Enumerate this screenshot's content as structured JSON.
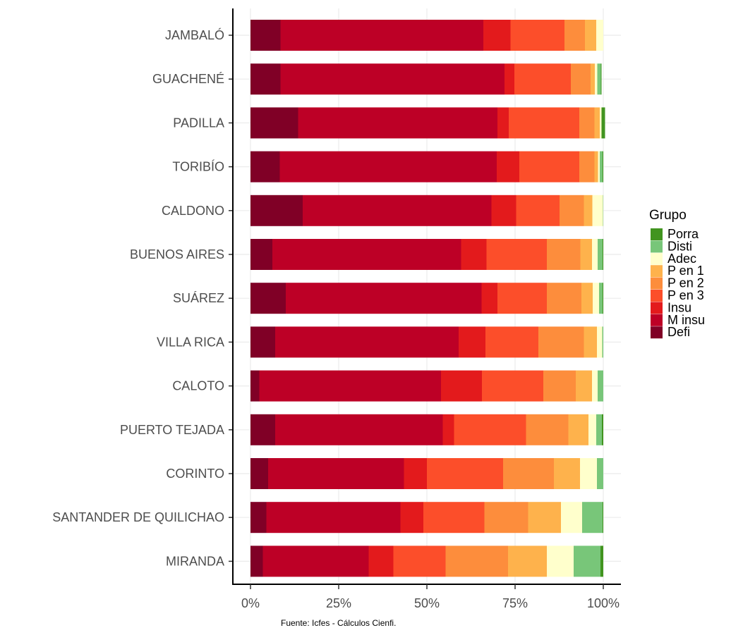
{
  "chart_data": {
    "type": "bar",
    "orientation": "horizontal",
    "stacked": "percent",
    "categories": [
      "JAMBALÓ",
      "GUACHENÉ",
      "PADILLA",
      "TORIBÍO",
      "CALDONO",
      "BUENOS AIRES",
      "SUÁREZ",
      "VILLA RICA",
      "CALOTO",
      "PUERTO TEJADA",
      "CORINTO",
      "SANTANDER DE QUILICHAO",
      "MIRANDA"
    ],
    "series": [
      {
        "name": "Defi",
        "color": "#800026",
        "values": [
          8.5,
          8.5,
          13.5,
          8.3,
          14.8,
          6.2,
          10.0,
          7.0,
          2.5,
          7.0,
          5.0,
          4.5,
          3.5
        ]
      },
      {
        "name": "M insu",
        "color": "#bd0026",
        "values": [
          57.5,
          63.5,
          56.5,
          61.5,
          53.5,
          53.5,
          55.5,
          52.0,
          51.5,
          47.5,
          38.5,
          38.0,
          30.0
        ]
      },
      {
        "name": "Insu",
        "color": "#e31a1c",
        "values": [
          7.7,
          2.8,
          3.2,
          6.4,
          7.0,
          7.2,
          4.5,
          7.6,
          11.6,
          3.2,
          6.5,
          6.5,
          7.0
        ]
      },
      {
        "name": "P en 3",
        "color": "#fc4e2a",
        "values": [
          15.3,
          16.0,
          20.0,
          17.0,
          12.3,
          17.1,
          14.0,
          15.0,
          17.4,
          20.4,
          21.6,
          17.3,
          14.8
        ]
      },
      {
        "name": "P en 2",
        "color": "#fd8d3c",
        "values": [
          5.8,
          5.6,
          4.3,
          4.3,
          6.9,
          9.5,
          9.8,
          12.9,
          9.2,
          12.0,
          14.4,
          12.4,
          17.7
        ]
      },
      {
        "name": "P en 1",
        "color": "#feb24c",
        "values": [
          3.2,
          1.2,
          1.5,
          1.0,
          2.4,
          3.3,
          3.2,
          3.7,
          4.6,
          5.7,
          7.4,
          9.3,
          11.0
        ]
      },
      {
        "name": "Adec",
        "color": "#ffffcc",
        "values": [
          2.0,
          0.7,
          0.5,
          0.5,
          3.0,
          1.6,
          1.8,
          1.5,
          1.6,
          2.2,
          4.8,
          6.0,
          7.6
        ]
      },
      {
        "name": "Disti",
        "color": "#78c679",
        "values": [
          0.0,
          1.0,
          0.0,
          0.8,
          0.1,
          1.4,
          1.0,
          0.3,
          1.6,
          1.6,
          1.8,
          5.8,
          7.6
        ]
      },
      {
        "name": "Porra",
        "color": "#41941f",
        "values": [
          0.0,
          0.2,
          1.0,
          0.2,
          0.0,
          0.2,
          0.2,
          0.0,
          0.0,
          0.4,
          0.0,
          0.2,
          0.8
        ]
      }
    ],
    "legend_order": [
      "Porra",
      "Disti",
      "Adec",
      "P en 1",
      "P en 2",
      "P en 3",
      "Insu",
      "M insu",
      "Defi"
    ],
    "x_ticks": [
      "0%",
      "25%",
      "50%",
      "75%",
      "100%"
    ],
    "xlim": [
      0,
      100
    ],
    "legend": {
      "title": "Grupo",
      "placement": "right"
    },
    "caption": "Fuente: Icfes - Cálculos Cienfi.",
    "grid": true
  }
}
